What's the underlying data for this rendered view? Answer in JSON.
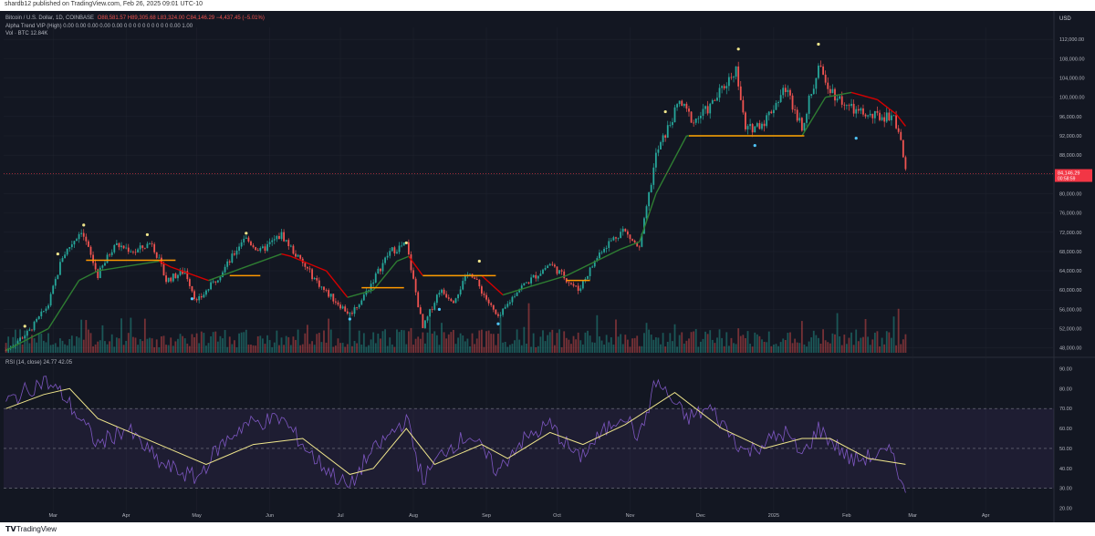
{
  "header": {
    "published": "shardb12 published on TradingView.com, Feb 26, 2025 09:01 UTC-10"
  },
  "legend": {
    "main_title": "Bitcoin / U.S. Dollar, 1D, COINBASE",
    "ohlc": "O88,581.57  H89,305.68  L83,324.00  C84,146.29  −4,437.45 (−5.01%)",
    "indicator": "Alpha Trend VIP (High)  0.00  0.00  0.00  0.00  0.00  0  0  0  0  0  0  0  0  0  0  0.00  1.00",
    "volume": "Vol · BTC  12.84K",
    "rsi": "RSI (14, close)  24.77  42.05"
  },
  "price_badge": {
    "value": "84,146.29",
    "countdown": "00:58:59",
    "color": "#f23645"
  },
  "currency": "USD",
  "footer": {
    "brand": "TradingView",
    "logo": "tradingview-logo"
  },
  "colors": {
    "background": "#131722",
    "up": "#26a69a",
    "down": "#ef5350",
    "trend_up": "#2e7d32",
    "trend_down": "#d50000",
    "support": "#ff9800",
    "rsi_line": "#7e57c2",
    "rsi_ma": "#f0e68c"
  },
  "chart_data": [
    {
      "type": "candlestick",
      "title": "Bitcoin / U.S. Dollar, 1D, COINBASE",
      "x_ticks": [
        "Mar",
        "Apr",
        "May",
        "Jun",
        "Jul",
        "Aug",
        "Sep",
        "Oct",
        "Nov",
        "Dec",
        "2025",
        "Feb",
        "Mar",
        "Apr"
      ],
      "y_ticks": [
        "112,000.00",
        "108,000.00",
        "104,000.00",
        "100,000.00",
        "96,000.00",
        "92,000.00",
        "88,000.00",
        "84,000.00",
        "80,000.00",
        "76,000.00",
        "72,000.00",
        "68,000.00",
        "64,000.00",
        "60,000.00",
        "56,000.00",
        "52,000.00",
        "48,000.00"
      ],
      "ylim": [
        47000,
        114500
      ],
      "close_path": [
        [
          "2024-02-10",
          47500
        ],
        [
          "2024-02-20",
          51500
        ],
        [
          "2024-02-28",
          57000
        ],
        [
          "2024-03-05",
          67000
        ],
        [
          "2024-03-13",
          72500
        ],
        [
          "2024-03-20",
          63000
        ],
        [
          "2024-03-27",
          69500
        ],
        [
          "2024-04-05",
          68000
        ],
        [
          "2024-04-12",
          70000
        ],
        [
          "2024-04-18",
          62000
        ],
        [
          "2024-04-26",
          64000
        ],
        [
          "2024-05-01",
          57500
        ],
        [
          "2024-05-08",
          61500
        ],
        [
          "2024-05-15",
          66000
        ],
        [
          "2024-05-21",
          71000
        ],
        [
          "2024-05-28",
          68000
        ],
        [
          "2024-06-06",
          71500
        ],
        [
          "2024-06-14",
          66000
        ],
        [
          "2024-06-24",
          60000
        ],
        [
          "2024-07-05",
          55000
        ],
        [
          "2024-07-10",
          58000
        ],
        [
          "2024-07-22",
          68000
        ],
        [
          "2024-07-29",
          69500
        ],
        [
          "2024-08-05",
          52000
        ],
        [
          "2024-08-12",
          60000
        ],
        [
          "2024-08-18",
          58000
        ],
        [
          "2024-08-25",
          64000
        ],
        [
          "2024-09-06",
          54000
        ],
        [
          "2024-09-14",
          60000
        ],
        [
          "2024-09-22",
          63000
        ],
        [
          "2024-09-28",
          65500
        ],
        [
          "2024-10-10",
          60000
        ],
        [
          "2024-10-20",
          68500
        ],
        [
          "2024-10-29",
          72500
        ],
        [
          "2024-11-05",
          68500
        ],
        [
          "2024-11-12",
          88000
        ],
        [
          "2024-11-22",
          99000
        ],
        [
          "2024-11-28",
          95000
        ],
        [
          "2024-12-05",
          98000
        ],
        [
          "2024-12-16",
          106000
        ],
        [
          "2024-12-20",
          93000
        ],
        [
          "2024-12-28",
          95000
        ],
        [
          "2025-01-06",
          102000
        ],
        [
          "2025-01-13",
          94000
        ],
        [
          "2025-01-20",
          106000
        ],
        [
          "2025-01-27",
          100500
        ],
        [
          "2025-02-03",
          97500
        ],
        [
          "2025-02-10",
          96000
        ],
        [
          "2025-02-17",
          96000
        ],
        [
          "2025-02-21",
          96500
        ],
        [
          "2025-02-24",
          91000
        ],
        [
          "2025-02-26",
          84146.29
        ]
      ],
      "trend_line": [
        [
          "2024-02-10",
          47500
        ],
        [
          "2024-02-28",
          52000
        ],
        [
          "2024-03-12",
          62000
        ],
        [
          "2024-03-20",
          64000
        ],
        [
          "2024-04-15",
          66000
        ],
        [
          "2024-04-20",
          64800
        ],
        [
          "2024-05-06",
          62000
        ],
        [
          "2024-05-20",
          64500
        ],
        [
          "2024-06-06",
          67500
        ],
        [
          "2024-06-10",
          67000
        ],
        [
          "2024-06-25",
          64000
        ],
        [
          "2024-07-04",
          58500
        ],
        [
          "2024-07-15",
          60000
        ],
        [
          "2024-07-25",
          66000
        ],
        [
          "2024-07-30",
          67000
        ],
        [
          "2024-08-05",
          63000
        ],
        [
          "2024-08-30",
          63000
        ],
        [
          "2024-09-08",
          59000
        ],
        [
          "2024-09-18",
          60500
        ],
        [
          "2024-10-05",
          63000
        ],
        [
          "2024-10-28",
          68500
        ],
        [
          "2024-11-05",
          70000
        ],
        [
          "2024-11-12",
          80000
        ],
        [
          "2024-11-25",
          92000
        ],
        [
          "2024-12-10",
          92000
        ],
        [
          "2025-01-13",
          92000
        ],
        [
          "2025-01-23",
          100000
        ],
        [
          "2025-02-03",
          101000
        ],
        [
          "2025-02-14",
          99500
        ],
        [
          "2025-02-22",
          96500
        ],
        [
          "2025-02-26",
          94000
        ]
      ],
      "support_lines": [
        {
          "from": "2024-03-15",
          "to": "2024-04-22",
          "value": 66200
        },
        {
          "from": "2024-05-15",
          "to": "2024-05-28",
          "value": 63000
        },
        {
          "from": "2024-07-10",
          "to": "2024-07-28",
          "value": 60500
        },
        {
          "from": "2024-08-05",
          "to": "2024-09-05",
          "value": 63000
        },
        {
          "from": "2024-10-05",
          "to": "2024-10-15",
          "value": 62000
        },
        {
          "from": "2024-11-26",
          "to": "2025-01-14",
          "value": 92000
        }
      ],
      "last_price": 84146.29
    },
    {
      "type": "line",
      "title": "RSI (14, close)",
      "y_ticks": [
        "90.00",
        "80.00",
        "70.00",
        "60.00",
        "50.00",
        "40.00",
        "30.00",
        "20.00"
      ],
      "ylim": [
        18,
        92
      ],
      "bands": [
        70,
        50,
        30
      ],
      "series": [
        {
          "name": "RSI",
          "values": [
            [
              "2024-02-10",
              73
            ],
            [
              "2024-02-26",
              84
            ],
            [
              "2024-03-05",
              77
            ],
            [
              "2024-03-20",
              52
            ],
            [
              "2024-04-01",
              60
            ],
            [
              "2024-04-16",
              42
            ],
            [
              "2024-05-01",
              35
            ],
            [
              "2024-05-10",
              50
            ],
            [
              "2024-05-21",
              62
            ],
            [
              "2024-06-06",
              65
            ],
            [
              "2024-06-20",
              45
            ],
            [
              "2024-07-05",
              30
            ],
            [
              "2024-07-12",
              45
            ],
            [
              "2024-07-29",
              65
            ],
            [
              "2024-08-05",
              34
            ],
            [
              "2024-08-14",
              49
            ],
            [
              "2024-08-25",
              57
            ],
            [
              "2024-09-06",
              38
            ],
            [
              "2024-09-14",
              52
            ],
            [
              "2024-09-28",
              62
            ],
            [
              "2024-10-10",
              45
            ],
            [
              "2024-10-29",
              68
            ],
            [
              "2024-11-05",
              55
            ],
            [
              "2024-11-12",
              84
            ],
            [
              "2024-11-25",
              65
            ],
            [
              "2024-12-05",
              70
            ],
            [
              "2024-12-20",
              48
            ],
            [
              "2025-01-06",
              58
            ],
            [
              "2025-01-13",
              46
            ],
            [
              "2025-01-20",
              60
            ],
            [
              "2025-02-03",
              44
            ],
            [
              "2025-02-21",
              48
            ],
            [
              "2025-02-26",
              24.77
            ]
          ]
        },
        {
          "name": "RSI MA",
          "values": [
            [
              "2024-02-10",
              70
            ],
            [
              "2024-02-26",
              77
            ],
            [
              "2024-03-08",
              80
            ],
            [
              "2024-03-20",
              65
            ],
            [
              "2024-04-15",
              52
            ],
            [
              "2024-05-05",
              42
            ],
            [
              "2024-05-25",
              52
            ],
            [
              "2024-06-15",
              55
            ],
            [
              "2024-07-05",
              37
            ],
            [
              "2024-07-15",
              40
            ],
            [
              "2024-07-29",
              60
            ],
            [
              "2024-08-10",
              42
            ],
            [
              "2024-08-30",
              52
            ],
            [
              "2024-09-10",
              45
            ],
            [
              "2024-09-28",
              58
            ],
            [
              "2024-10-12",
              52
            ],
            [
              "2024-10-30",
              62
            ],
            [
              "2024-11-20",
              78
            ],
            [
              "2024-12-10",
              60
            ],
            [
              "2024-12-28",
              50
            ],
            [
              "2025-01-13",
              55
            ],
            [
              "2025-01-25",
              55
            ],
            [
              "2025-02-10",
              45
            ],
            [
              "2025-02-26",
              42.05
            ]
          ]
        }
      ],
      "last_values": {
        "rsi": 24.77,
        "ma": 42.05
      }
    }
  ]
}
